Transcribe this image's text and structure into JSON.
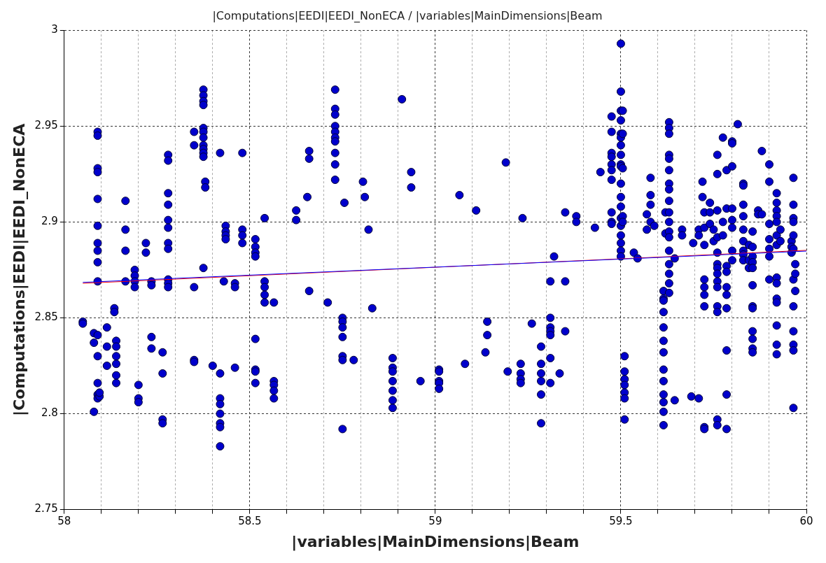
{
  "chart_data": {
    "type": "scatter",
    "title": "|Computations|EEDI|EEDI_NonECA / |variables|MainDimensions|Beam",
    "xlabel": "|variables|MainDimensions|Beam",
    "ylabel": "|Computations|EEDI|EEDI_NonECA",
    "xlim": [
      58,
      60
    ],
    "xticks": [
      58,
      {
        "value": 58.1,
        "label": null
      },
      {
        "value": 58.2,
        "label": null
      },
      {
        "value": 58.3,
        "label": null
      },
      {
        "value": 58.4,
        "label": null
      },
      58.5,
      {
        "value": 58.6,
        "label": null
      },
      {
        "value": 58.7,
        "label": null
      },
      {
        "value": 58.8,
        "label": null
      },
      {
        "value": 58.9,
        "label": null
      },
      59,
      {
        "value": 59.1,
        "label": null
      },
      {
        "value": 59.2,
        "label": null
      },
      {
        "value": 59.3,
        "label": null
      },
      {
        "value": 59.4,
        "label": null
      },
      59.5,
      {
        "value": 59.6,
        "label": null
      },
      {
        "value": 59.7,
        "label": null
      },
      {
        "value": 59.8,
        "label": null
      },
      {
        "value": 59.9,
        "label": null
      },
      60
    ],
    "ylim": [
      2.75,
      3
    ],
    "yticks": [
      2.75,
      2.8,
      2.85,
      2.9,
      2.95,
      3
    ],
    "grid": true,
    "legend": false,
    "marker": "circle",
    "series": [
      {
        "type": "scatter",
        "color": "#0000cc",
        "x": [
          58.05,
          58.05,
          58.08,
          58.08,
          58.08,
          58.09,
          58.09,
          58.09,
          58.09,
          58.09,
          58.09,
          58.09,
          58.09,
          58.09,
          58.09,
          58.09,
          58.09,
          58.09,
          58.09,
          58.09,
          58.095,
          58.095,
          58.115,
          58.115,
          58.115,
          58.135,
          58.135,
          58.14,
          58.14,
          58.14,
          58.14,
          58.14,
          58.14,
          58.165,
          58.165,
          58.165,
          58.165,
          58.19,
          58.19,
          58.19,
          58.19,
          58.2,
          58.2,
          58.2,
          58.22,
          58.22,
          58.235,
          58.235,
          58.235,
          58.235,
          58.265,
          58.265,
          58.265,
          58.265,
          58.28,
          58.28,
          58.28,
          58.28,
          58.28,
          58.28,
          58.28,
          58.28,
          58.28,
          58.28,
          58.28,
          58.35,
          58.35,
          58.35,
          58.35,
          58.35,
          58.375,
          58.375,
          58.375,
          58.375,
          58.375,
          58.375,
          58.375,
          58.375,
          58.375,
          58.375,
          58.375,
          58.375,
          58.38,
          58.38,
          58.4,
          58.42,
          58.42,
          58.42,
          58.42,
          58.42,
          58.42,
          58.42,
          58.42,
          58.43,
          58.435,
          58.435,
          58.435,
          58.435,
          58.46,
          58.46,
          58.46,
          58.48,
          58.48,
          58.48,
          58.48,
          58.515,
          58.515,
          58.515,
          58.515,
          58.515,
          58.515,
          58.515,
          58.515,
          58.54,
          58.54,
          58.54,
          58.54,
          58.54,
          58.565,
          58.565,
          58.565,
          58.565,
          58.565,
          58.625,
          58.625,
          58.655,
          58.66,
          58.66,
          58.66,
          58.71,
          58.73,
          58.73,
          58.73,
          58.73,
          58.73,
          58.73,
          58.73,
          58.73,
          58.73,
          58.73,
          58.75,
          58.75,
          58.75,
          58.75,
          58.75,
          58.75,
          58.75,
          58.755,
          58.78,
          58.805,
          58.81,
          58.82,
          58.83,
          58.885,
          58.885,
          58.885,
          58.885,
          58.885,
          58.885,
          58.885,
          58.91,
          58.935,
          58.935,
          58.96,
          59.01,
          59.01,
          59.01,
          59.01,
          59.01,
          59.065,
          59.08,
          59.11,
          59.135,
          59.14,
          59.14,
          59.19,
          59.195,
          59.23,
          59.23,
          59.23,
          59.23,
          59.235,
          59.26,
          59.285,
          59.285,
          59.285,
          59.285,
          59.285,
          59.285,
          59.31,
          59.31,
          59.31,
          59.31,
          59.31,
          59.31,
          59.31,
          59.32,
          59.335,
          59.35,
          59.35,
          59.35,
          59.38,
          59.38,
          59.43,
          59.445,
          59.475,
          59.475,
          59.475,
          59.475,
          59.475,
          59.475,
          59.475,
          59.475,
          59.475,
          59.475,
          59.5,
          59.5,
          59.5,
          59.5,
          59.5,
          59.5,
          59.5,
          59.5,
          59.5,
          59.5,
          59.5,
          59.5,
          59.5,
          59.5,
          59.5,
          59.5,
          59.5,
          59.5,
          59.5,
          59.505,
          59.505,
          59.505,
          59.505,
          59.505,
          59.51,
          59.51,
          59.51,
          59.51,
          59.51,
          59.51,
          59.51,
          59.535,
          59.545,
          59.57,
          59.57,
          59.58,
          59.58,
          59.58,
          59.58,
          59.59,
          59.615,
          59.615,
          59.615,
          59.615,
          59.615,
          59.615,
          59.615,
          59.615,
          59.615,
          59.615,
          59.615,
          59.615,
          59.615,
          59.62,
          59.62,
          59.63,
          59.63,
          59.63,
          59.63,
          59.63,
          59.63,
          59.63,
          59.63,
          59.63,
          59.63,
          59.63,
          59.63,
          59.63,
          59.63,
          59.63,
          59.63,
          59.63,
          59.63,
          59.645,
          59.645,
          59.665,
          59.665,
          59.69,
          59.695,
          59.71,
          59.71,
          59.71,
          59.72,
          59.72,
          59.725,
          59.725,
          59.725,
          59.725,
          59.725,
          59.725,
          59.725,
          59.725,
          59.725,
          59.74,
          59.74,
          59.74,
          59.75,
          59.75,
          59.76,
          59.76,
          59.76,
          59.76,
          59.76,
          59.76,
          59.76,
          59.76,
          59.76,
          59.76,
          59.76,
          59.76,
          59.76,
          59.76,
          59.775,
          59.775,
          59.775,
          59.785,
          59.785,
          59.785,
          59.785,
          59.785,
          59.785,
          59.785,
          59.785,
          59.785,
          59.785,
          59.8,
          59.8,
          59.8,
          59.8,
          59.8,
          59.8,
          59.8,
          59.8,
          59.815,
          59.83,
          59.83,
          59.83,
          59.83,
          59.83,
          59.83,
          59.83,
          59.83,
          59.83,
          59.845,
          59.845,
          59.845,
          59.855,
          59.855,
          59.855,
          59.855,
          59.855,
          59.855,
          59.855,
          59.855,
          59.855,
          59.855,
          59.855,
          59.855,
          59.87,
          59.87,
          59.88,
          59.88,
          59.9,
          59.9,
          59.9,
          59.9,
          59.9,
          59.9,
          59.9,
          59.92,
          59.92,
          59.92,
          59.92,
          59.92,
          59.92,
          59.92,
          59.92,
          59.92,
          59.92,
          59.92,
          59.92,
          59.92,
          59.92,
          59.93,
          59.93,
          59.96,
          59.96,
          59.96,
          59.965,
          59.965,
          59.965,
          59.965,
          59.965,
          59.965,
          59.965,
          59.965,
          59.965,
          59.965,
          59.965,
          59.965,
          59.97,
          59.97,
          59.97
        ],
        "values": [
          2.848,
          2.847,
          2.801,
          2.837,
          2.842,
          2.947,
          2.945,
          2.928,
          2.926,
          2.912,
          2.898,
          2.889,
          2.885,
          2.879,
          2.869,
          2.841,
          2.83,
          2.816,
          2.81,
          2.808,
          2.809,
          2.811,
          2.845,
          2.835,
          2.825,
          2.855,
          2.853,
          2.838,
          2.835,
          2.83,
          2.826,
          2.82,
          2.816,
          2.911,
          2.896,
          2.885,
          2.869,
          2.875,
          2.872,
          2.869,
          2.866,
          2.815,
          2.808,
          2.806,
          2.889,
          2.884,
          2.869,
          2.867,
          2.84,
          2.834,
          2.832,
          2.821,
          2.797,
          2.795,
          2.935,
          2.932,
          2.915,
          2.909,
          2.901,
          2.897,
          2.889,
          2.886,
          2.87,
          2.868,
          2.866,
          2.947,
          2.94,
          2.866,
          2.828,
          2.827,
          2.969,
          2.966,
          2.963,
          2.961,
          2.949,
          2.947,
          2.944,
          2.94,
          2.938,
          2.936,
          2.934,
          2.876,
          2.921,
          2.918,
          2.825,
          2.936,
          2.821,
          2.808,
          2.805,
          2.8,
          2.795,
          2.793,
          2.783,
          2.869,
          2.898,
          2.895,
          2.893,
          2.891,
          2.868,
          2.866,
          2.824,
          2.936,
          2.896,
          2.893,
          2.889,
          2.891,
          2.887,
          2.884,
          2.882,
          2.839,
          2.823,
          2.822,
          2.816,
          2.902,
          2.869,
          2.866,
          2.862,
          2.858,
          2.858,
          2.817,
          2.815,
          2.812,
          2.808,
          2.906,
          2.901,
          2.913,
          2.937,
          2.933,
          2.864,
          2.858,
          2.969,
          2.959,
          2.956,
          2.95,
          2.947,
          2.944,
          2.942,
          2.936,
          2.93,
          2.922,
          2.85,
          2.848,
          2.845,
          2.84,
          2.83,
          2.828,
          2.792,
          2.91,
          2.828,
          2.921,
          2.913,
          2.896,
          2.855,
          2.829,
          2.824,
          2.822,
          2.817,
          2.812,
          2.807,
          2.803,
          2.964,
          2.926,
          2.918,
          2.817,
          2.823,
          2.822,
          2.817,
          2.816,
          2.813,
          2.914,
          2.826,
          2.906,
          2.832,
          2.848,
          2.841,
          2.931,
          2.822,
          2.826,
          2.821,
          2.818,
          2.816,
          2.902,
          2.847,
          2.835,
          2.826,
          2.821,
          2.817,
          2.81,
          2.795,
          2.869,
          2.85,
          2.845,
          2.843,
          2.841,
          2.829,
          2.816,
          2.882,
          2.821,
          2.905,
          2.869,
          2.843,
          2.903,
          2.9,
          2.897,
          2.926,
          2.955,
          2.947,
          2.936,
          2.934,
          2.93,
          2.927,
          2.922,
          2.905,
          2.9,
          2.899,
          2.993,
          2.968,
          2.958,
          2.953,
          2.946,
          2.944,
          2.94,
          2.935,
          2.93,
          2.929,
          2.92,
          2.913,
          2.908,
          2.902,
          2.898,
          2.893,
          2.889,
          2.885,
          2.882,
          2.958,
          2.946,
          2.928,
          2.903,
          2.9,
          2.83,
          2.822,
          2.818,
          2.815,
          2.811,
          2.808,
          2.797,
          2.884,
          2.881,
          2.904,
          2.896,
          2.923,
          2.914,
          2.909,
          2.9,
          2.898,
          2.864,
          2.86,
          2.859,
          2.853,
          2.845,
          2.838,
          2.832,
          2.823,
          2.817,
          2.81,
          2.806,
          2.801,
          2.794,
          2.905,
          2.894,
          2.952,
          2.949,
          2.946,
          2.935,
          2.933,
          2.927,
          2.92,
          2.917,
          2.911,
          2.905,
          2.9,
          2.895,
          2.892,
          2.885,
          2.878,
          2.873,
          2.868,
          2.863,
          2.881,
          2.807,
          2.896,
          2.893,
          2.809,
          2.889,
          2.896,
          2.893,
          2.808,
          2.921,
          2.913,
          2.905,
          2.897,
          2.888,
          2.87,
          2.866,
          2.862,
          2.856,
          2.793,
          2.792,
          2.91,
          2.905,
          2.899,
          2.896,
          2.89,
          2.935,
          2.925,
          2.906,
          2.892,
          2.884,
          2.878,
          2.876,
          2.873,
          2.869,
          2.866,
          2.856,
          2.853,
          2.797,
          2.794,
          2.944,
          2.9,
          2.893,
          2.927,
          2.907,
          2.877,
          2.874,
          2.866,
          2.862,
          2.855,
          2.833,
          2.81,
          2.792,
          2.942,
          2.941,
          2.929,
          2.907,
          2.901,
          2.897,
          2.885,
          2.88,
          2.951,
          2.92,
          2.919,
          2.909,
          2.903,
          2.896,
          2.89,
          2.885,
          2.883,
          2.88,
          2.888,
          2.88,
          2.876,
          2.895,
          2.887,
          2.882,
          2.879,
          2.876,
          2.867,
          2.856,
          2.855,
          2.843,
          2.839,
          2.834,
          2.832,
          2.906,
          2.904,
          2.937,
          2.904,
          2.93,
          2.921,
          2.899,
          2.891,
          2.886,
          2.882,
          2.87,
          2.915,
          2.91,
          2.906,
          2.903,
          2.9,
          2.893,
          2.888,
          2.871,
          2.868,
          2.86,
          2.858,
          2.846,
          2.836,
          2.831,
          2.896,
          2.89,
          2.89,
          2.887,
          2.884,
          2.923,
          2.909,
          2.902,
          2.9,
          2.893,
          2.886,
          2.87,
          2.856,
          2.843,
          2.836,
          2.833,
          2.803,
          2.878,
          2.873,
          2.864
        ]
      },
      {
        "type": "line",
        "color": "#0000ff",
        "marker": "none",
        "x": [
          58.05,
          60
        ],
        "values": [
          2.8685,
          2.8848
        ]
      },
      {
        "type": "line",
        "color": "#ff0000",
        "marker": "none",
        "x": [
          58.05,
          60
        ],
        "values": [
          2.868,
          2.8852
        ]
      }
    ]
  }
}
